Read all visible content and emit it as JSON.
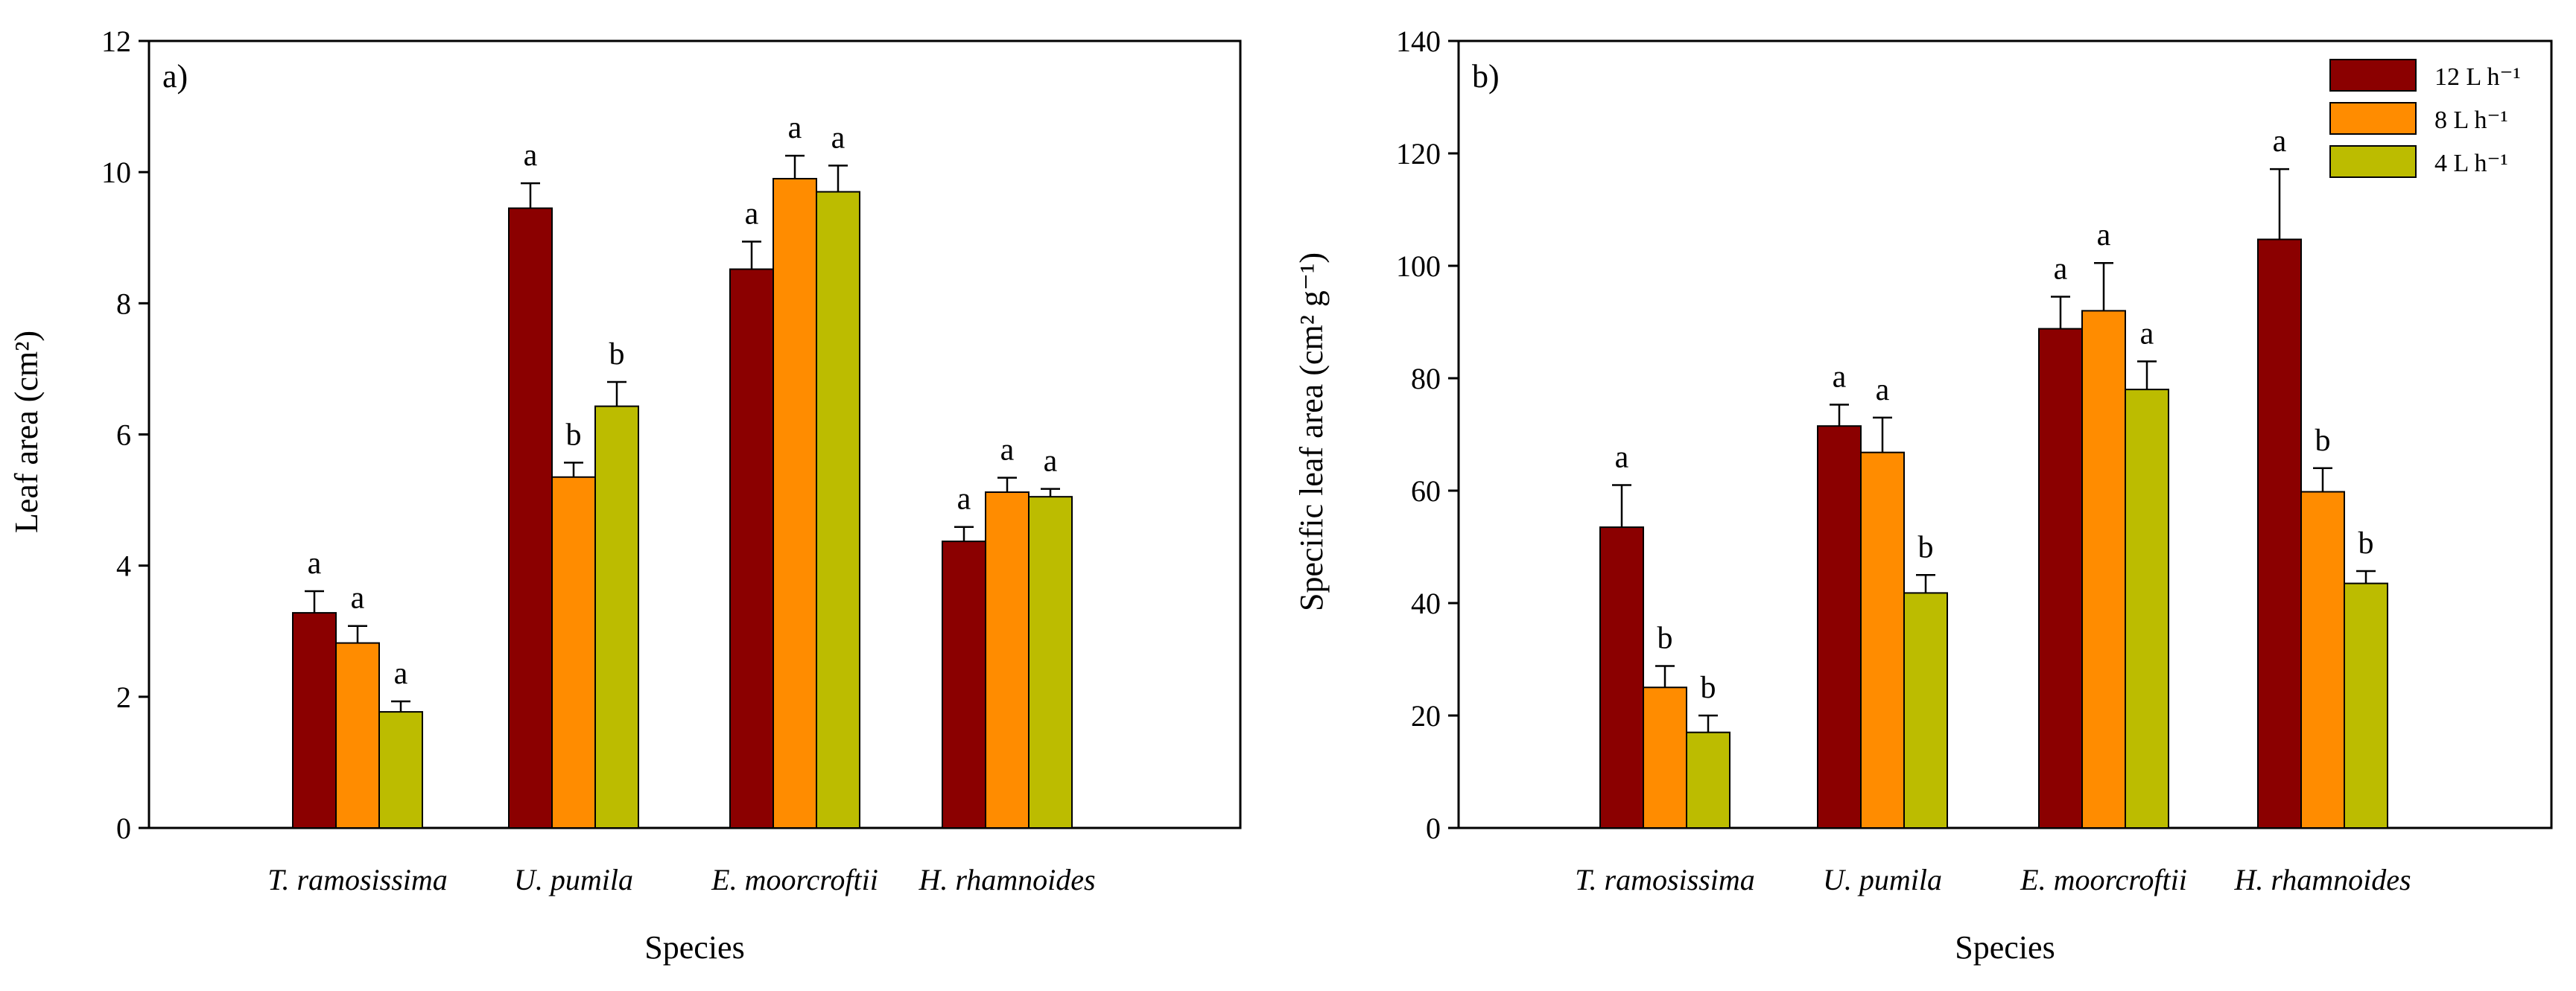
{
  "colors": {
    "12L": "#8b0000",
    "8L": "#ff8c00",
    "4L": "#bcbc00"
  },
  "chart_data": [
    {
      "type": "bar",
      "panel_label": "a)",
      "xlabel": "Species",
      "ylabel": "Leaf area (cm²)",
      "ylim": [
        0,
        12
      ],
      "yticks": [
        0,
        2,
        4,
        6,
        8,
        10,
        12
      ],
      "categories": [
        "T. ramosissima",
        "U. pumila",
        "E. moorcroftii",
        "H. rhamnoides"
      ],
      "series": [
        {
          "name": "12 L h⁻¹",
          "key": "12L",
          "values": [
            3.28,
            9.45,
            8.52,
            4.37
          ],
          "errors": [
            0.33,
            0.38,
            0.42,
            0.22
          ],
          "letters": [
            "a",
            "a",
            "a",
            "a"
          ]
        },
        {
          "name": "8 L h⁻¹",
          "key": "8L",
          "values": [
            2.82,
            5.35,
            9.9,
            5.12
          ],
          "errors": [
            0.26,
            0.22,
            0.35,
            0.22
          ],
          "letters": [
            "a",
            "b",
            "a",
            "a"
          ]
        },
        {
          "name": "4 L h⁻¹",
          "key": "4L",
          "values": [
            1.77,
            6.43,
            9.7,
            5.05
          ],
          "errors": [
            0.16,
            0.37,
            0.4,
            0.12
          ],
          "letters": [
            "a",
            "b",
            "a",
            "a"
          ]
        }
      ]
    },
    {
      "type": "bar",
      "panel_label": "b)",
      "xlabel": "Species",
      "ylabel": "Specific leaf area (cm² g⁻¹)",
      "ylim": [
        0,
        140
      ],
      "yticks": [
        0,
        20,
        40,
        60,
        80,
        100,
        120,
        140
      ],
      "categories": [
        "T. ramosissima",
        "U. pumila",
        "E. moorcroftii",
        "H. rhamnoides"
      ],
      "legend_position": "top-right",
      "series": [
        {
          "name": "12 L h⁻¹",
          "key": "12L",
          "values": [
            53.5,
            71.5,
            88.8,
            104.7
          ],
          "errors": [
            7.5,
            3.8,
            5.7,
            12.5
          ],
          "letters": [
            "a",
            "a",
            "a",
            "a"
          ]
        },
        {
          "name": "8 L h⁻¹",
          "key": "8L",
          "values": [
            25,
            66.8,
            92,
            59.8
          ],
          "errors": [
            3.8,
            6.2,
            8.5,
            4.2
          ],
          "letters": [
            "b",
            "a",
            "a",
            "b"
          ]
        },
        {
          "name": "4 L h⁻¹",
          "key": "4L",
          "values": [
            17,
            41.8,
            78,
            43.5
          ],
          "errors": [
            3,
            3.2,
            5,
            2.2
          ],
          "letters": [
            "b",
            "b",
            "a",
            "b"
          ]
        }
      ]
    }
  ]
}
